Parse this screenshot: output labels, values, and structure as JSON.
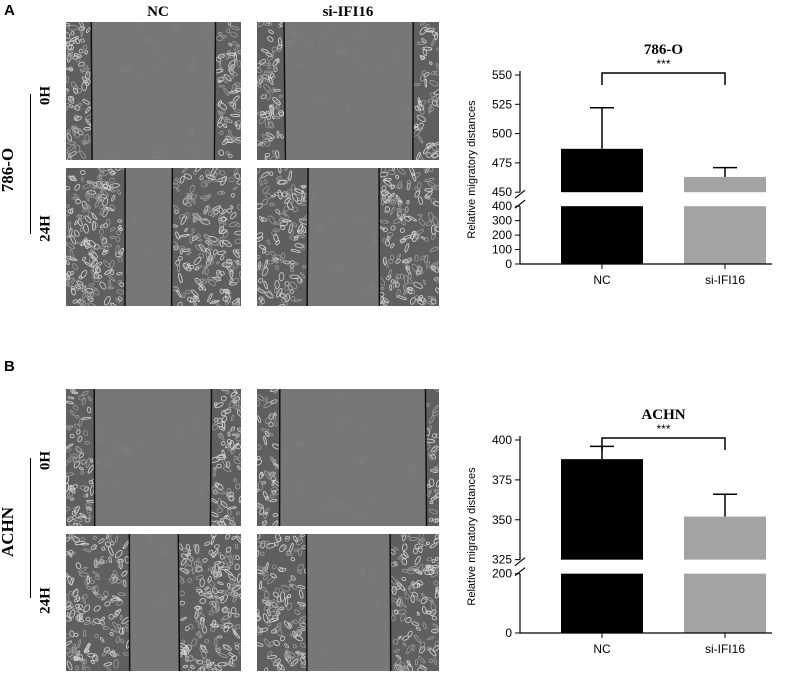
{
  "panel_labels": [
    "A",
    "B"
  ],
  "columns": [
    "NC",
    "si-IFI16"
  ],
  "time_labels": [
    "0H",
    "24H"
  ],
  "cell_lines": [
    "786-O",
    "ACHN"
  ],
  "colors": {
    "nc_bar": "#000000",
    "si_bar": "#a3a3a3",
    "gap": "#7a7a7a",
    "cells": "#bdbdbd"
  },
  "scratch_gaps": {
    "A": {
      "NC_0H": 0.71,
      "si_0H": 0.71,
      "NC_24H": 0.27,
      "si_24H": 0.39
    },
    "B": {
      "NC_0H": 0.67,
      "si_0H": 0.8,
      "NC_24H": 0.28,
      "si_24H": 0.46
    }
  },
  "chart_data": [
    {
      "type": "bar",
      "title": "786-O",
      "ylabel": "Relative migratory distances",
      "categories": [
        "NC",
        "si-IFI16"
      ],
      "values": [
        487,
        463
      ],
      "errors": [
        35,
        8
      ],
      "broken_axis": {
        "lower": [
          0,
          400
        ],
        "upper": [
          450,
          550
        ]
      },
      "yticks_lower": [
        "0",
        "100",
        "200",
        "300",
        "400"
      ],
      "yticks_upper": [
        "450",
        "475",
        "500",
        "525",
        "550"
      ],
      "significance": "***"
    },
    {
      "type": "bar",
      "title": "ACHN",
      "ylabel": "Relative migratory distances",
      "categories": [
        "NC",
        "si-IFI16"
      ],
      "values": [
        388,
        352
      ],
      "errors": [
        8,
        14
      ],
      "broken_axis": {
        "lower": [
          0,
          200
        ],
        "upper": [
          325,
          400
        ]
      },
      "yticks_lower": [
        "0",
        "200"
      ],
      "yticks_upper": [
        "325",
        "350",
        "375",
        "400"
      ],
      "significance": "***"
    }
  ]
}
